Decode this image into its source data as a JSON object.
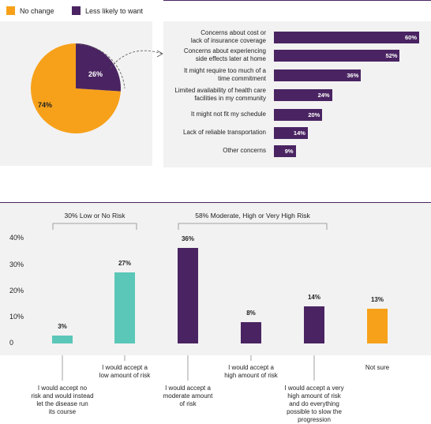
{
  "colors": {
    "orange": "#f7a11a",
    "purple": "#4a2462",
    "teal": "#5bc7b8",
    "panel": "#f2f2f2"
  },
  "legend": [
    {
      "label": "No change",
      "color": "#f7a11a"
    },
    {
      "label": "Less likely to want",
      "color": "#4a2462"
    }
  ],
  "chart_data": [
    {
      "type": "pie",
      "labels": [
        "No change",
        "Less likely to want"
      ],
      "values": [
        74,
        26
      ],
      "value_labels": [
        "74%",
        "26%"
      ]
    },
    {
      "type": "bar",
      "orientation": "horizontal",
      "categories": [
        [
          "Concerns about cost or",
          "lack of insurance coverage"
        ],
        [
          "Concerns about experiencing",
          "side effects later at home"
        ],
        [
          "It might require too much of a",
          "time commitment"
        ],
        [
          "Limited availability of health care",
          "facilities in my community"
        ],
        [
          "It might not fit my schedule"
        ],
        [
          "Lack of reliable transportation"
        ],
        [
          "Other concerns"
        ]
      ],
      "values": [
        60,
        52,
        36,
        24,
        20,
        14,
        9
      ],
      "value_labels": [
        "60%",
        "52%",
        "36%",
        "24%",
        "20%",
        "14%",
        "9%"
      ]
    },
    {
      "type": "bar",
      "orientation": "vertical",
      "ylim": [
        0,
        40
      ],
      "yticks": [
        "40%",
        "30%",
        "20%",
        "10%",
        "0"
      ],
      "groups": [
        "30% Low or No Risk",
        "58% Moderate, High or Very High Risk"
      ],
      "categories": [
        [
          "I would accept no",
          "risk and would instead",
          "let the disease run",
          "its course"
        ],
        [
          "I would accept a",
          "low amount of risk"
        ],
        [
          "I would accept a",
          "moderate amount",
          "of risk"
        ],
        [
          "I would accept a",
          "high amount of risk"
        ],
        [
          "I would accept a very",
          "high amount of risk",
          "and do everything",
          "possible to slow the",
          "progression"
        ],
        [
          "Not sure"
        ]
      ],
      "values": [
        3,
        27,
        36,
        8,
        14,
        13
      ],
      "value_labels": [
        "3%",
        "27%",
        "36%",
        "8%",
        "14%",
        "13%"
      ],
      "colors": [
        "#5bc7b8",
        "#5bc7b8",
        "#4a2462",
        "#4a2462",
        "#4a2462",
        "#f7a11a"
      ]
    }
  ]
}
